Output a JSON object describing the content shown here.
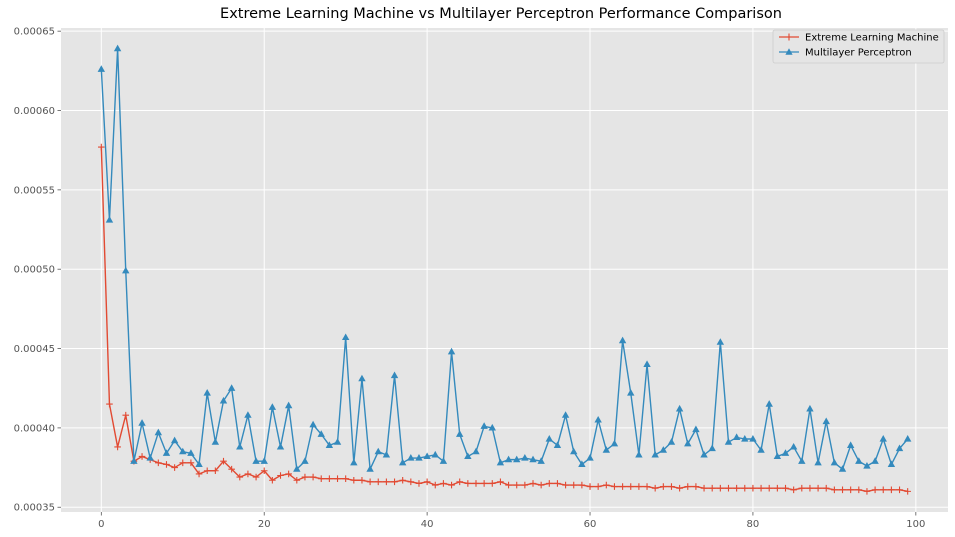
{
  "chart_data": {
    "type": "line",
    "title": "Extreme Learning Machine vs Multilayer Perceptron Performance Comparison",
    "xlabel": "",
    "ylabel": "",
    "xlim": [
      -4.95,
      103.95
    ],
    "ylim": [
      0.000347,
      0.000652
    ],
    "xticks": [
      0,
      20,
      40,
      60,
      80,
      100
    ],
    "yticks": [
      0.00035,
      0.0004,
      0.00045,
      0.0005,
      0.00055,
      0.0006,
      0.00065
    ],
    "ytick_labels": [
      "0.00035",
      "0.00040",
      "0.00045",
      "0.00050",
      "0.00055",
      "0.00060",
      "0.00065"
    ],
    "grid": true,
    "legend_position": "top-right",
    "x": [
      0,
      1,
      2,
      3,
      4,
      5,
      6,
      7,
      8,
      9,
      10,
      11,
      12,
      13,
      14,
      15,
      16,
      17,
      18,
      19,
      20,
      21,
      22,
      23,
      24,
      25,
      26,
      27,
      28,
      29,
      30,
      31,
      32,
      33,
      34,
      35,
      36,
      37,
      38,
      39,
      40,
      41,
      42,
      43,
      44,
      45,
      46,
      47,
      48,
      49,
      50,
      51,
      52,
      53,
      54,
      55,
      56,
      57,
      58,
      59,
      60,
      61,
      62,
      63,
      64,
      65,
      66,
      67,
      68,
      69,
      70,
      71,
      72,
      73,
      74,
      75,
      76,
      77,
      78,
      79,
      80,
      81,
      82,
      83,
      84,
      85,
      86,
      87,
      88,
      89,
      90,
      91,
      92,
      93,
      94,
      95,
      96,
      97,
      98,
      99
    ],
    "series": [
      {
        "name": "Extreme Learning Machine",
        "color": "#E24A33",
        "marker": "plus",
        "values": [
          0.000577,
          0.000415,
          0.000388,
          0.000408,
          0.000379,
          0.000382,
          0.00038,
          0.000378,
          0.000377,
          0.000375,
          0.000378,
          0.000378,
          0.000371,
          0.000373,
          0.000373,
          0.000379,
          0.000374,
          0.000369,
          0.000371,
          0.000369,
          0.000373,
          0.000367,
          0.00037,
          0.000371,
          0.000367,
          0.000369,
          0.000369,
          0.000368,
          0.000368,
          0.000368,
          0.000368,
          0.000367,
          0.000367,
          0.000366,
          0.000366,
          0.000366,
          0.000366,
          0.000367,
          0.000366,
          0.000365,
          0.000366,
          0.000364,
          0.000365,
          0.000364,
          0.000366,
          0.000365,
          0.000365,
          0.000365,
          0.000365,
          0.000366,
          0.000364,
          0.000364,
          0.000364,
          0.000365,
          0.000364,
          0.000365,
          0.000365,
          0.000364,
          0.000364,
          0.000364,
          0.000363,
          0.000363,
          0.000364,
          0.000363,
          0.000363,
          0.000363,
          0.000363,
          0.000363,
          0.000362,
          0.000363,
          0.000363,
          0.000362,
          0.000363,
          0.000363,
          0.000362,
          0.000362,
          0.000362,
          0.000362,
          0.000362,
          0.000362,
          0.000362,
          0.000362,
          0.000362,
          0.000362,
          0.000362,
          0.000361,
          0.000362,
          0.000362,
          0.000362,
          0.000362,
          0.000361,
          0.000361,
          0.000361,
          0.000361,
          0.00036,
          0.000361,
          0.000361,
          0.000361,
          0.000361,
          0.00036
        ]
      },
      {
        "name": "Multilayer Perceptron",
        "color": "#348ABD",
        "marker": "triangle",
        "values": [
          0.000626,
          0.000531,
          0.000639,
          0.000499,
          0.000379,
          0.000403,
          0.000381,
          0.000397,
          0.000384,
          0.000392,
          0.000385,
          0.000384,
          0.000377,
          0.000422,
          0.000391,
          0.000417,
          0.000425,
          0.000388,
          0.000408,
          0.000379,
          0.000379,
          0.000413,
          0.000388,
          0.000414,
          0.000374,
          0.000379,
          0.000402,
          0.000396,
          0.000389,
          0.000391,
          0.000457,
          0.000378,
          0.000431,
          0.000374,
          0.000385,
          0.000383,
          0.000433,
          0.000378,
          0.000381,
          0.000381,
          0.000382,
          0.000383,
          0.000379,
          0.000448,
          0.000396,
          0.000382,
          0.000385,
          0.000401,
          0.0004,
          0.000378,
          0.00038,
          0.00038,
          0.000381,
          0.00038,
          0.000379,
          0.000393,
          0.000389,
          0.000408,
          0.000385,
          0.000377,
          0.000381,
          0.000405,
          0.000386,
          0.00039,
          0.000455,
          0.000422,
          0.000383,
          0.00044,
          0.000383,
          0.000386,
          0.000391,
          0.000412,
          0.00039,
          0.000399,
          0.000383,
          0.000387,
          0.000454,
          0.000391,
          0.000394,
          0.000393,
          0.000393,
          0.000386,
          0.000415,
          0.000382,
          0.000384,
          0.000388,
          0.000379,
          0.000412,
          0.000378,
          0.000404,
          0.000378,
          0.000374,
          0.000389,
          0.000379,
          0.000376,
          0.000379,
          0.000393,
          0.000377,
          0.000387,
          0.000393
        ]
      }
    ]
  }
}
